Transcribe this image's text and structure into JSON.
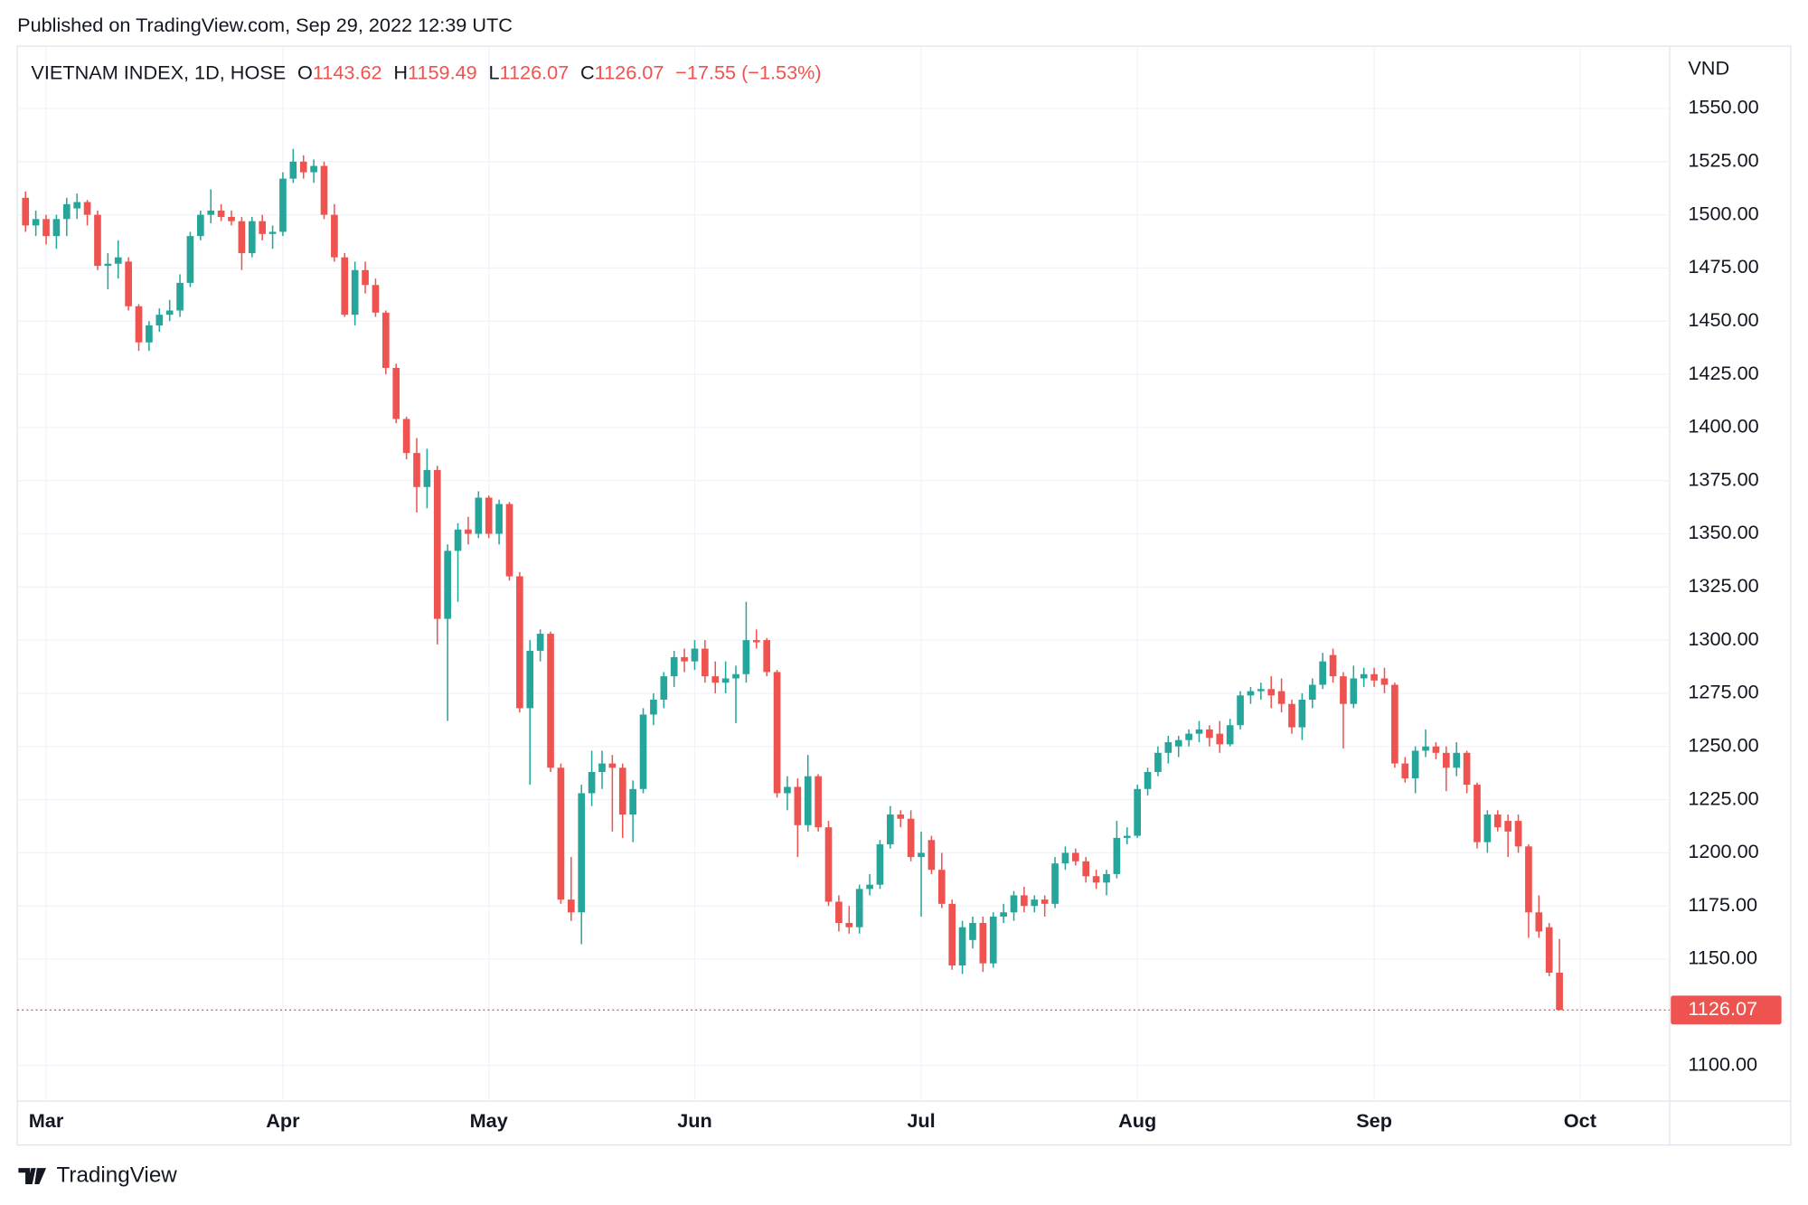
{
  "header": {
    "published": "Published on TradingView.com, Sep 29, 2022 12:39 UTC",
    "brand": "TradingView"
  },
  "chart_data": {
    "type": "candlestick",
    "symbol": "VIETNAM INDEX, 1D, HOSE",
    "legend": [
      {
        "key": "O",
        "value": "1143.62"
      },
      {
        "key": "H",
        "value": "1159.49"
      },
      {
        "key": "L",
        "value": "1126.07"
      },
      {
        "key": "C",
        "value": "1126.07"
      }
    ],
    "change": "−17.55 (−1.53%)",
    "y_axis_label": "VND",
    "last_price_label": "1126.07",
    "up_color": "#26a69a",
    "down_color": "#ef5350",
    "grid": true,
    "xlim": [
      -0.8,
      159.7
    ],
    "xticks": [
      {
        "value": 2,
        "label": "Mar"
      },
      {
        "value": 25,
        "label": "Apr"
      },
      {
        "value": 45,
        "label": "May"
      },
      {
        "value": 65,
        "label": "Jun"
      },
      {
        "value": 87,
        "label": "Jul"
      },
      {
        "value": 108,
        "label": "Aug"
      },
      {
        "value": 131,
        "label": "Sep"
      },
      {
        "value": 151,
        "label": "Oct"
      }
    ],
    "ylim": [
      1083.2,
      1579.3
    ],
    "yticks": [
      {
        "value": 1100,
        "label": "1100.00"
      },
      {
        "value": 1150,
        "label": "1150.00"
      },
      {
        "value": 1175,
        "label": "1175.00"
      },
      {
        "value": 1200,
        "label": "1200.00"
      },
      {
        "value": 1225,
        "label": "1225.00"
      },
      {
        "value": 1250,
        "label": "1250.00"
      },
      {
        "value": 1275,
        "label": "1275.00"
      },
      {
        "value": 1300,
        "label": "1300.00"
      },
      {
        "value": 1325,
        "label": "1325.00"
      },
      {
        "value": 1350,
        "label": "1350.00"
      },
      {
        "value": 1375,
        "label": "1375.00"
      },
      {
        "value": 1400,
        "label": "1400.00"
      },
      {
        "value": 1425,
        "label": "1425.00"
      },
      {
        "value": 1450,
        "label": "1450.00"
      },
      {
        "value": 1475,
        "label": "1475.00"
      },
      {
        "value": 1500,
        "label": "1500.00"
      },
      {
        "value": 1525,
        "label": "1525.00"
      },
      {
        "value": 1550,
        "label": "1550.00"
      }
    ],
    "open": [
      1508,
      1495,
      1498,
      1490,
      1498,
      1503,
      1506,
      1500,
      1476,
      1477,
      1478,
      1457,
      1440,
      1448,
      1453,
      1455,
      1468,
      1490,
      1500,
      1502,
      1499,
      1497,
      1482,
      1497,
      1491,
      1492,
      1517,
      1525,
      1520,
      1523,
      1500,
      1480,
      1453,
      1474,
      1467,
      1454,
      1428,
      1404,
      1388,
      1372,
      1380,
      1310,
      1342,
      1352,
      1350,
      1367,
      1350,
      1364,
      1330,
      1268,
      1295,
      1303,
      1240,
      1178,
      1172,
      1228,
      1238,
      1242,
      1240,
      1218,
      1230,
      1265,
      1272,
      1283,
      1292,
      1290,
      1296,
      1283,
      1280,
      1282,
      1284,
      1300,
      1300,
      1285,
      1228,
      1231,
      1213,
      1236,
      1212,
      1177,
      1167,
      1165,
      1183,
      1185,
      1204,
      1218,
      1216,
      1198,
      1206,
      1192,
      1176,
      1147,
      1159,
      1167,
      1148,
      1170,
      1172,
      1180,
      1175,
      1178,
      1176,
      1195,
      1200,
      1196,
      1189,
      1186,
      1190,
      1207,
      1208,
      1230,
      1238,
      1247,
      1250,
      1253,
      1256,
      1258,
      1256,
      1251,
      1260,
      1274,
      1276,
      1277,
      1276,
      1270,
      1259,
      1272,
      1279,
      1293,
      1283,
      1270,
      1282,
      1284,
      1282,
      1279,
      1242,
      1235,
      1248,
      1250,
      1247,
      1240,
      1247,
      1232,
      1205,
      1218,
      1215,
      1215,
      1203,
      1172,
      1165,
      1143.62
    ],
    "high": [
      1511,
      1502,
      1500,
      1500,
      1508,
      1510,
      1507,
      1502,
      1482,
      1488,
      1480,
      1458,
      1450,
      1456,
      1460,
      1472,
      1492,
      1502,
      1512,
      1505,
      1502,
      1499,
      1499,
      1500,
      1495,
      1520,
      1531,
      1528,
      1526,
      1525,
      1505,
      1482,
      1478,
      1478,
      1470,
      1455,
      1430,
      1405,
      1395,
      1390,
      1382,
      1345,
      1355,
      1358,
      1370,
      1368,
      1366,
      1365,
      1332,
      1300,
      1305,
      1304,
      1242,
      1198,
      1232,
      1248,
      1248,
      1246,
      1242,
      1234,
      1268,
      1275,
      1285,
      1295,
      1296,
      1300,
      1300,
      1290,
      1290,
      1288,
      1318,
      1305,
      1301,
      1286,
      1236,
      1235,
      1246,
      1237,
      1215,
      1180,
      1175,
      1185,
      1190,
      1206,
      1222,
      1220,
      1220,
      1210,
      1208,
      1200,
      1178,
      1168,
      1170,
      1170,
      1172,
      1176,
      1182,
      1184,
      1180,
      1180,
      1198,
      1203,
      1202,
      1198,
      1192,
      1192,
      1215,
      1212,
      1232,
      1240,
      1250,
      1255,
      1255,
      1258,
      1262,
      1260,
      1262,
      1263,
      1276,
      1278,
      1280,
      1283,
      1282,
      1272,
      1275,
      1282,
      1294,
      1296,
      1285,
      1288,
      1287,
      1287,
      1287,
      1280,
      1245,
      1250,
      1258,
      1252,
      1250,
      1252,
      1248,
      1233,
      1220,
      1220,
      1218,
      1218,
      1204,
      1180,
      1167,
      1159.49
    ],
    "low": [
      1492,
      1490,
      1486,
      1484,
      1490,
      1498,
      1495,
      1474,
      1465,
      1470,
      1455,
      1436,
      1436,
      1445,
      1450,
      1452,
      1466,
      1488,
      1496,
      1497,
      1495,
      1474,
      1480,
      1488,
      1484,
      1490,
      1515,
      1517,
      1515,
      1498,
      1478,
      1452,
      1448,
      1463,
      1452,
      1425,
      1402,
      1385,
      1360,
      1362,
      1298,
      1262,
      1318,
      1345,
      1348,
      1348,
      1345,
      1328,
      1266,
      1232,
      1290,
      1238,
      1176,
      1168,
      1157,
      1222,
      1230,
      1210,
      1207,
      1205,
      1228,
      1260,
      1268,
      1278,
      1285,
      1286,
      1280,
      1275,
      1275,
      1261,
      1280,
      1296,
      1283,
      1226,
      1220,
      1198,
      1210,
      1210,
      1175,
      1163,
      1162,
      1162,
      1180,
      1183,
      1202,
      1212,
      1196,
      1170,
      1190,
      1174,
      1145,
      1143,
      1155,
      1144,
      1146,
      1167,
      1168,
      1172,
      1172,
      1170,
      1174,
      1192,
      1194,
      1186,
      1183,
      1180,
      1188,
      1204,
      1207,
      1227,
      1236,
      1242,
      1245,
      1250,
      1252,
      1250,
      1247,
      1250,
      1258,
      1270,
      1272,
      1268,
      1266,
      1256,
      1253,
      1268,
      1277,
      1280,
      1249,
      1268,
      1278,
      1278,
      1275,
      1240,
      1233,
      1228,
      1245,
      1244,
      1229,
      1236,
      1228,
      1202,
      1200,
      1210,
      1198,
      1200,
      1160,
      1160,
      1142,
      1126.07
    ],
    "close": [
      1495,
      1498,
      1490,
      1498,
      1505,
      1506,
      1500,
      1476,
      1477,
      1480,
      1457,
      1440,
      1448,
      1453,
      1455,
      1468,
      1490,
      1500,
      1502,
      1499,
      1497,
      1482,
      1497,
      1491,
      1492,
      1517,
      1525,
      1520,
      1523,
      1500,
      1480,
      1453,
      1474,
      1467,
      1454,
      1428,
      1404,
      1388,
      1372,
      1380,
      1310,
      1342,
      1352,
      1350,
      1367,
      1350,
      1364,
      1330,
      1268,
      1295,
      1303,
      1240,
      1178,
      1172,
      1228,
      1238,
      1242,
      1240,
      1218,
      1230,
      1265,
      1272,
      1283,
      1292,
      1290,
      1296,
      1283,
      1280,
      1282,
      1284,
      1300,
      1299,
      1285,
      1228,
      1231,
      1213,
      1236,
      1212,
      1177,
      1167,
      1165,
      1183,
      1185,
      1204,
      1218,
      1216,
      1198,
      1200,
      1192,
      1176,
      1147,
      1165,
      1167,
      1148,
      1170,
      1172,
      1180,
      1175,
      1178,
      1176,
      1195,
      1200,
      1196,
      1189,
      1186,
      1190,
      1207,
      1208,
      1230,
      1238,
      1247,
      1252,
      1253,
      1256,
      1258,
      1254,
      1251,
      1260,
      1274,
      1276,
      1277,
      1274,
      1270,
      1259,
      1272,
      1279,
      1290,
      1283,
      1270,
      1282,
      1284,
      1281,
      1279,
      1242,
      1235,
      1248,
      1250,
      1247,
      1240,
      1247,
      1232,
      1205,
      1218,
      1212,
      1210,
      1203,
      1172,
      1163,
      1143.62,
      1126.07
    ]
  }
}
